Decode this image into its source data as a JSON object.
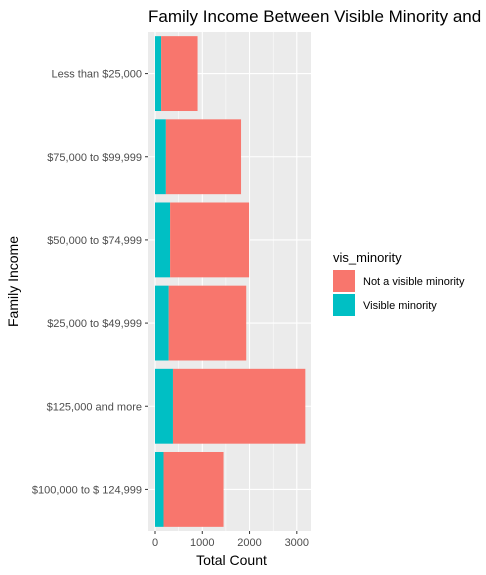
{
  "chart_data": {
    "type": "bar",
    "orientation": "horizontal",
    "stacked": true,
    "title": "Family Income Between Visible Minority and Not a Visible Minority",
    "xlabel": "Total Count",
    "ylabel": "Family Income",
    "xlim": [
      0,
      3300
    ],
    "xticks": [
      0,
      1000,
      2000,
      3000
    ],
    "categories": [
      "Less than $25,000",
      "$75,000 to $99,999",
      "$50,000 to $74,999",
      "$25,000 to $49,999",
      "$125,000 and more",
      "$100,000 to $ 124,999"
    ],
    "series": [
      {
        "name": "Visible minority",
        "color": "#00BFC4",
        "values": [
          130,
          230,
          320,
          290,
          380,
          180
        ]
      },
      {
        "name": "Not a visible minority",
        "color": "#F8766D",
        "values": [
          770,
          1590,
          1670,
          1640,
          2800,
          1270
        ]
      }
    ],
    "legend": {
      "title": "vis_minority",
      "position": "right",
      "entries": [
        {
          "label": "Not a visible minority",
          "color": "#F8766D"
        },
        {
          "label": "Visible minority",
          "color": "#00BFC4"
        }
      ]
    },
    "grid": true,
    "panel_background": "#EBEBEB",
    "grid_color": "#FFFFFF"
  }
}
